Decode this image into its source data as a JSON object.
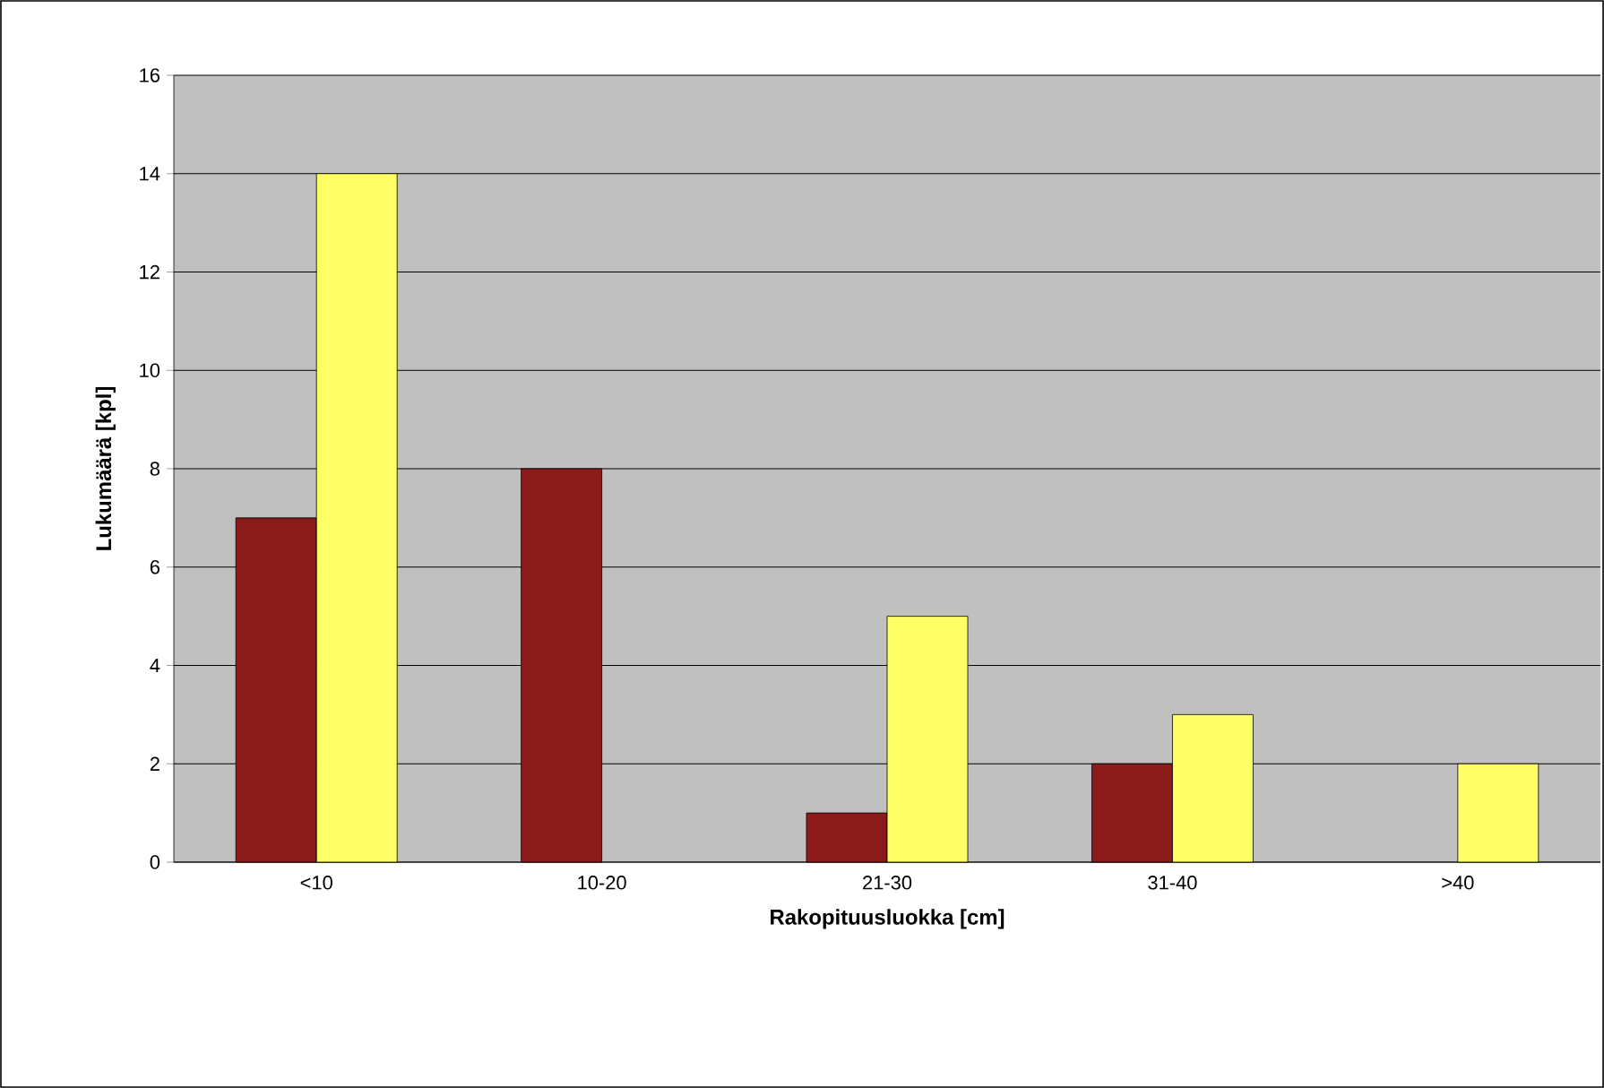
{
  "chart_data": {
    "type": "bar",
    "xlabel": "Rakopituusluokka [cm]",
    "ylabel": "Lukumäärä [kpl]",
    "categories": [
      "<10",
      "10-20",
      "21-30",
      "31-40",
      ">40"
    ],
    "series": [
      {
        "color": "#8b1a1a",
        "values": [
          7,
          8,
          1,
          2,
          null
        ]
      },
      {
        "color": "#ffff66",
        "values": [
          14,
          null,
          5,
          3,
          2
        ]
      }
    ],
    "ylim": [
      0,
      16
    ],
    "yticks": [
      0,
      2,
      4,
      6,
      8,
      10,
      12,
      14,
      16
    ],
    "grid": "y"
  }
}
